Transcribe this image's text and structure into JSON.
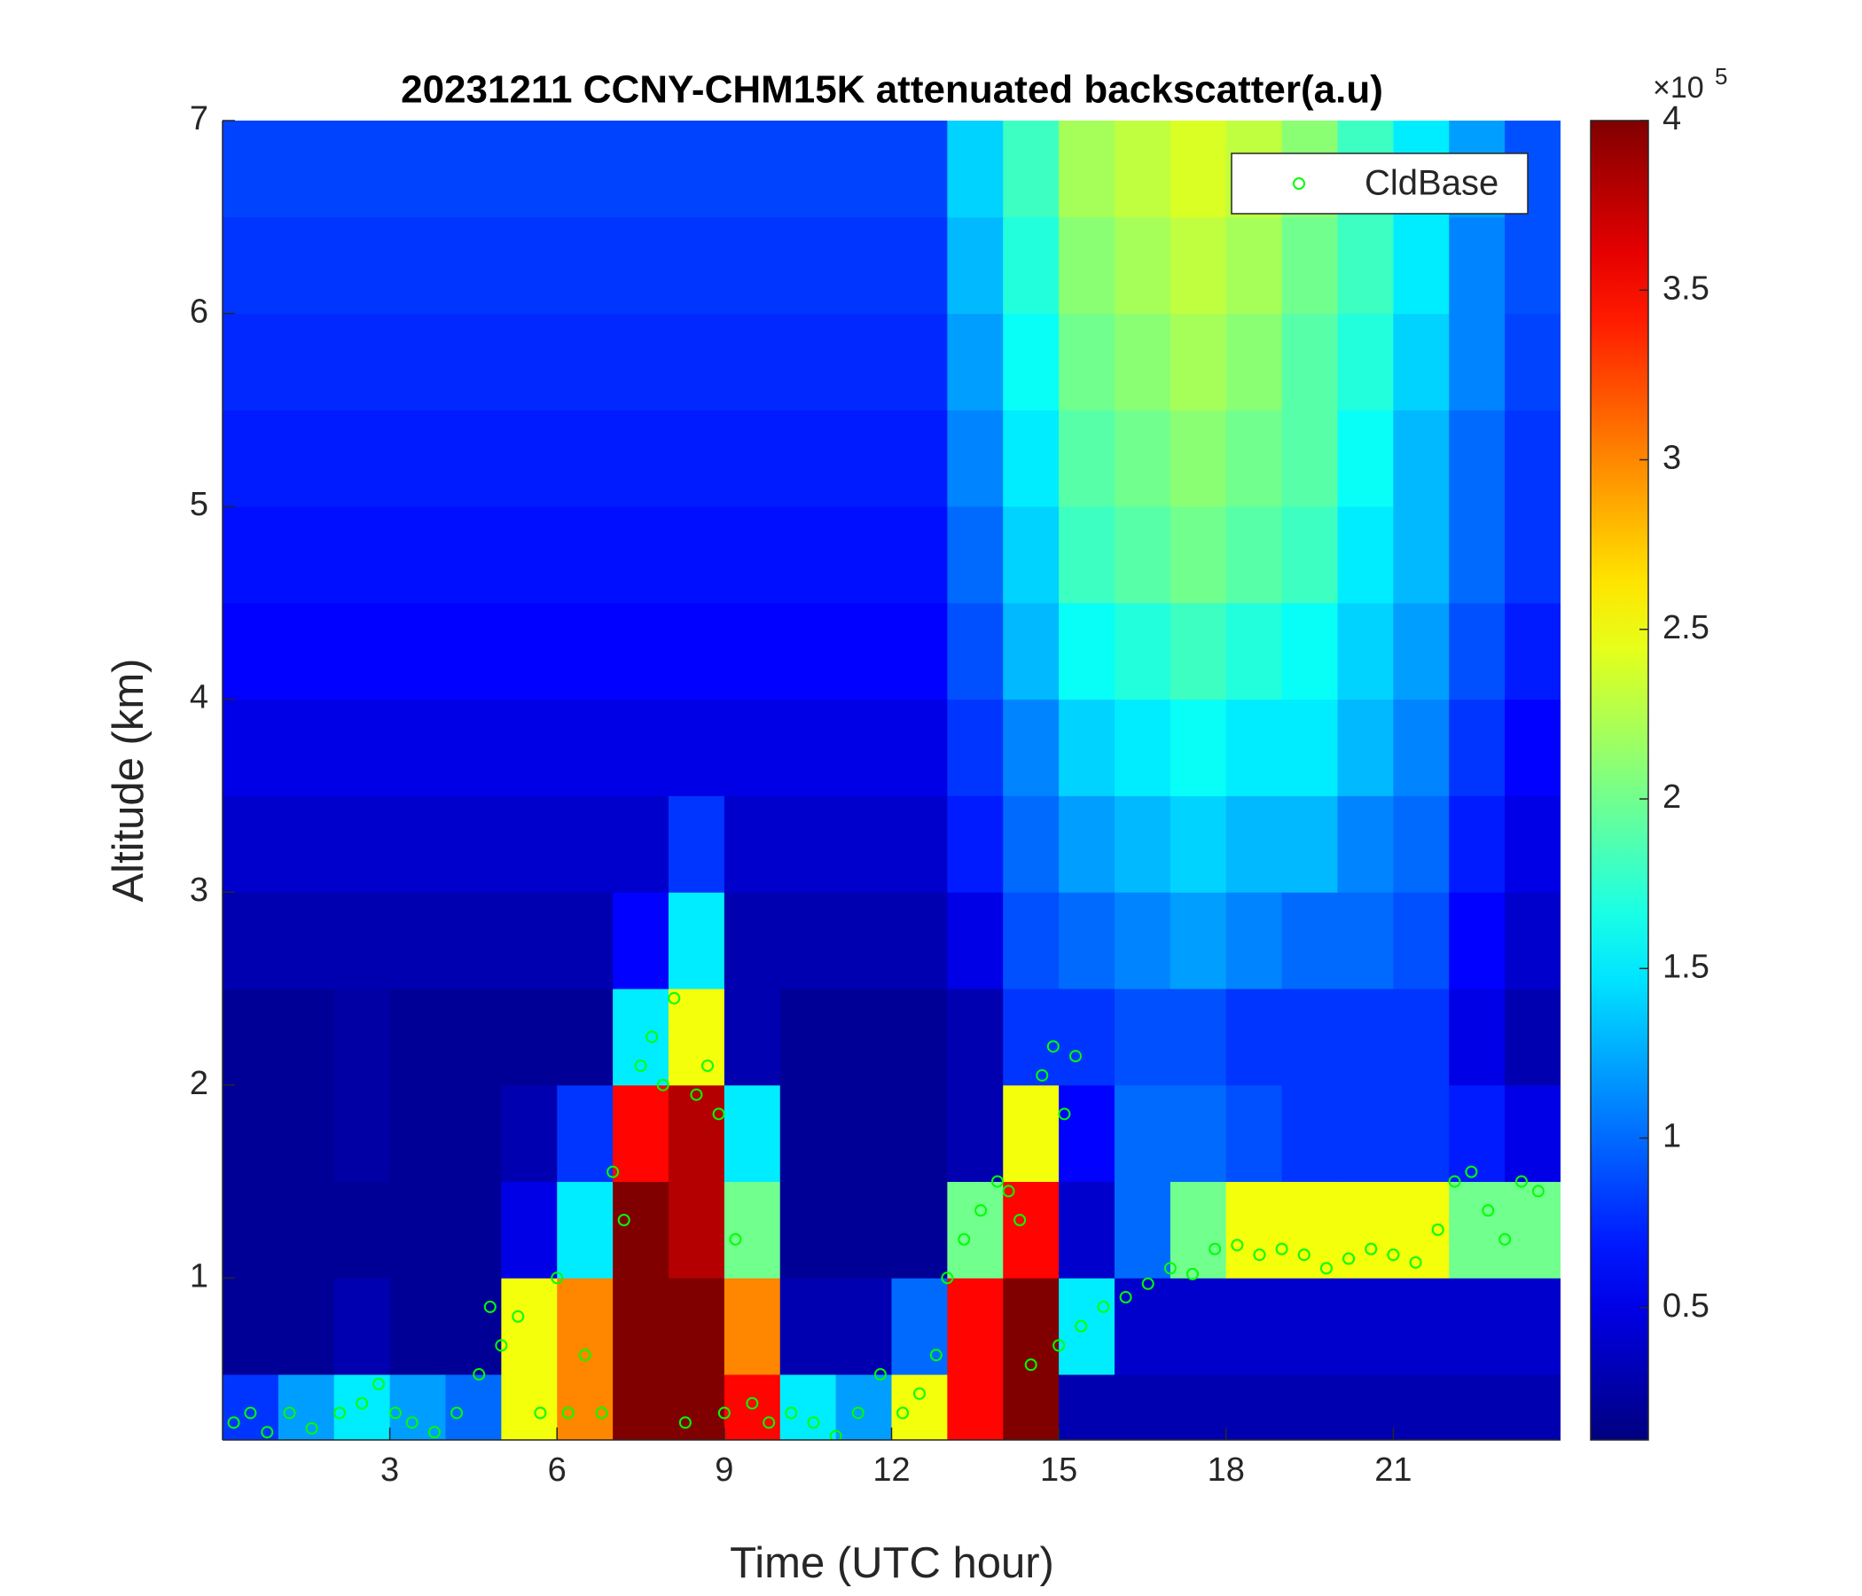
{
  "chart_data": {
    "type": "heatmap",
    "title": "20231211 CCNY-CHM15K attenuated backscatter(a.u)",
    "x_label": "Time (UTC hour)",
    "y_label": "Altitude (km)",
    "xlim": [
      0,
      24
    ],
    "ylim": [
      0.16,
      7
    ],
    "xticks": [
      3,
      6,
      9,
      12,
      15,
      18,
      21
    ],
    "yticks": [
      1,
      2,
      3,
      4,
      5,
      6,
      7
    ],
    "colormap": "jet",
    "x_edges": [
      0,
      1,
      2,
      3,
      4,
      5,
      6,
      7,
      8,
      9,
      10,
      11,
      12,
      13,
      14,
      15,
      16,
      17,
      18,
      19,
      20,
      21,
      22,
      23,
      24
    ],
    "y_edges": [
      0.16,
      0.5,
      1,
      1.5,
      2,
      2.5,
      3,
      3.5,
      4,
      4.5,
      5,
      5.5,
      6,
      6.5,
      7
    ],
    "z": [
      [
        0.8,
        1.2,
        1.5,
        1.2,
        1.0,
        2.5,
        3.0,
        4,
        4,
        3.5,
        1.5,
        1.2,
        2.5,
        3.5,
        4,
        0.3,
        0.3,
        0.3,
        0.3,
        0.3,
        0.3,
        0.3,
        0.3,
        0.3
      ],
      [
        0.2,
        0.2,
        0.3,
        0.2,
        0.2,
        2.5,
        3.0,
        4,
        4,
        3.0,
        0.3,
        0.3,
        1.0,
        3.5,
        4,
        1.5,
        0.4,
        0.4,
        0.4,
        0.4,
        0.4,
        0.4,
        0.4,
        0.4
      ],
      [
        0.2,
        0.2,
        0.2,
        0.2,
        0.2,
        0.5,
        1.5,
        4,
        3.8,
        2.0,
        0.2,
        0.2,
        0.2,
        2.0,
        3.5,
        0.4,
        1.0,
        2.0,
        2.5,
        2.5,
        2.5,
        2.5,
        2.0,
        2.0
      ],
      [
        0.2,
        0.2,
        0.25,
        0.2,
        0.2,
        0.3,
        0.8,
        3.5,
        3.8,
        1.5,
        0.2,
        0.2,
        0.2,
        0.3,
        2.5,
        0.6,
        1.0,
        1.0,
        0.9,
        0.8,
        0.8,
        0.8,
        0.7,
        0.5
      ],
      [
        0.2,
        0.2,
        0.25,
        0.2,
        0.2,
        0.2,
        0.2,
        1.5,
        2.5,
        0.3,
        0.2,
        0.2,
        0.2,
        0.3,
        0.8,
        0.8,
        0.9,
        0.9,
        0.8,
        0.8,
        0.8,
        0.8,
        0.5,
        0.3
      ],
      [
        0.3,
        0.3,
        0.3,
        0.3,
        0.3,
        0.3,
        0.3,
        0.6,
        1.5,
        0.3,
        0.3,
        0.3,
        0.3,
        0.5,
        0.9,
        1.0,
        1.1,
        1.2,
        1.1,
        1.0,
        1.0,
        0.9,
        0.6,
        0.4
      ],
      [
        0.4,
        0.4,
        0.4,
        0.4,
        0.4,
        0.4,
        0.4,
        0.4,
        0.8,
        0.4,
        0.4,
        0.4,
        0.4,
        0.7,
        1.0,
        1.2,
        1.3,
        1.4,
        1.3,
        1.3,
        1.1,
        1.0,
        0.7,
        0.5
      ],
      [
        0.5,
        0.5,
        0.5,
        0.5,
        0.5,
        0.5,
        0.5,
        0.5,
        0.5,
        0.5,
        0.5,
        0.5,
        0.5,
        0.8,
        1.1,
        1.4,
        1.5,
        1.6,
        1.5,
        1.5,
        1.3,
        1.1,
        0.8,
        0.6
      ],
      [
        0.6,
        0.6,
        0.6,
        0.6,
        0.6,
        0.6,
        0.6,
        0.6,
        0.6,
        0.6,
        0.6,
        0.6,
        0.6,
        0.9,
        1.3,
        1.6,
        1.7,
        1.8,
        1.7,
        1.6,
        1.4,
        1.2,
        0.9,
        0.7
      ],
      [
        0.65,
        0.65,
        0.65,
        0.65,
        0.65,
        0.65,
        0.65,
        0.65,
        0.65,
        0.65,
        0.65,
        0.65,
        0.65,
        1.0,
        1.4,
        1.8,
        1.9,
        2.0,
        1.9,
        1.8,
        1.5,
        1.3,
        1.0,
        0.8
      ],
      [
        0.7,
        0.7,
        0.7,
        0.7,
        0.7,
        0.7,
        0.7,
        0.7,
        0.7,
        0.7,
        0.7,
        0.7,
        0.7,
        1.1,
        1.5,
        1.9,
        2.0,
        2.1,
        2.0,
        1.9,
        1.6,
        1.3,
        1.0,
        0.8
      ],
      [
        0.75,
        0.75,
        0.75,
        0.75,
        0.75,
        0.75,
        0.75,
        0.75,
        0.75,
        0.75,
        0.75,
        0.75,
        0.75,
        1.2,
        1.6,
        2.0,
        2.1,
        2.2,
        2.1,
        1.9,
        1.7,
        1.4,
        1.1,
        0.85
      ],
      [
        0.8,
        0.8,
        0.8,
        0.8,
        0.8,
        0.8,
        0.8,
        0.8,
        0.8,
        0.8,
        0.8,
        0.8,
        0.8,
        1.3,
        1.7,
        2.1,
        2.2,
        2.3,
        2.2,
        2.0,
        1.8,
        1.5,
        1.1,
        0.9
      ],
      [
        0.85,
        0.85,
        0.85,
        0.85,
        0.85,
        0.85,
        0.85,
        0.85,
        0.85,
        0.85,
        0.85,
        0.85,
        0.85,
        1.4,
        1.8,
        2.2,
        2.3,
        2.4,
        2.3,
        2.1,
        1.8,
        1.5,
        1.2,
        0.9
      ]
    ],
    "colorbar": {
      "clim": [
        0.11,
        4
      ],
      "ticks": [
        0.5,
        1,
        1.5,
        2,
        2.5,
        3,
        3.5,
        4
      ],
      "multiplier": "×10",
      "multiplier_exponent": "5"
    },
    "series": [
      {
        "name": "CldBase",
        "type": "scatter",
        "color": "#00ff00",
        "x": [
          0.2,
          0.5,
          0.8,
          1.2,
          1.6,
          2.1,
          2.5,
          2.8,
          3.1,
          3.4,
          3.8,
          4.2,
          4.6,
          4.8,
          5.0,
          5.3,
          5.7,
          6.0,
          6.2,
          6.5,
          6.8,
          7.0,
          7.2,
          7.5,
          7.7,
          7.9,
          8.1,
          8.3,
          8.5,
          8.7,
          8.9,
          9.0,
          9.2,
          9.5,
          9.8,
          10.2,
          10.6,
          11.0,
          11.4,
          11.8,
          12.2,
          12.5,
          12.8,
          13.0,
          13.3,
          13.6,
          13.9,
          14.1,
          14.3,
          14.5,
          14.7,
          14.9,
          15.1,
          15.3,
          15.0,
          15.4,
          15.8,
          16.2,
          16.6,
          17.0,
          17.4,
          17.8,
          18.2,
          18.6,
          19.0,
          19.4,
          19.8,
          20.2,
          20.6,
          21.0,
          21.4,
          21.8,
          22.1,
          22.4,
          22.7,
          23.0,
          23.3,
          23.6
        ],
        "y": [
          0.25,
          0.3,
          0.2,
          0.3,
          0.22,
          0.3,
          0.35,
          0.45,
          0.3,
          0.25,
          0.2,
          0.3,
          0.5,
          0.85,
          0.65,
          0.8,
          0.3,
          1.0,
          0.3,
          0.6,
          0.3,
          1.55,
          1.3,
          2.1,
          2.25,
          2.0,
          2.45,
          0.25,
          1.95,
          2.1,
          1.85,
          0.3,
          1.2,
          0.35,
          0.25,
          0.3,
          0.25,
          0.18,
          0.3,
          0.5,
          0.3,
          0.4,
          0.6,
          1.0,
          1.2,
          1.35,
          1.5,
          1.45,
          1.3,
          0.55,
          2.05,
          2.2,
          1.85,
          2.15,
          0.65,
          0.75,
          0.85,
          0.9,
          0.97,
          1.05,
          1.02,
          1.15,
          1.17,
          1.12,
          1.15,
          1.12,
          1.05,
          1.1,
          1.15,
          1.12,
          1.08,
          1.25,
          1.5,
          1.55,
          1.35,
          1.2,
          1.5,
          1.45
        ]
      }
    ],
    "legend_position": "northeast"
  }
}
